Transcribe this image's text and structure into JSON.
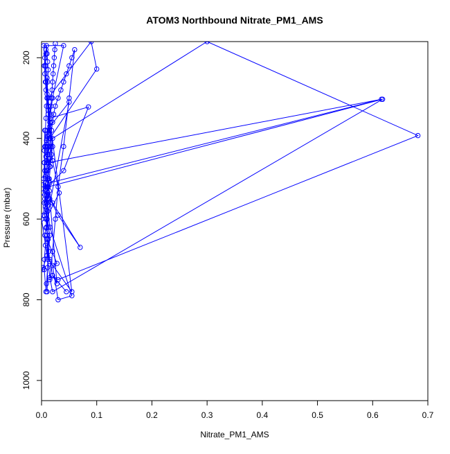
{
  "chart_data": {
    "type": "line",
    "title": "ATOM3 Northbound Nitrate_PM1_AMS",
    "xlabel": "Nitrate_PM1_AMS",
    "ylabel": "Pressure (mbar)",
    "xlim": [
      0,
      0.7
    ],
    "ylim": [
      1050,
      160
    ],
    "y_reversed": true,
    "x_ticks": [
      "0.0",
      "0.1",
      "0.2",
      "0.3",
      "0.4",
      "0.5",
      "0.6",
      "0.7"
    ],
    "y_ticks": [
      "200",
      "400",
      "600",
      "800",
      "1000"
    ],
    "grid": false,
    "legend": "none",
    "marker": "open-circle",
    "color": "#0000ff",
    "series": [
      {
        "x": [
          0.002,
          0.003,
          0.01,
          0.0,
          0.008,
          0.003,
          0.006,
          0.005,
          0.007,
          0.01,
          0.02,
          0.04,
          0.004,
          0.012,
          0.055,
          0.015,
          0.01,
          0.01,
          0.028,
          0.02,
          0.03,
          0.055,
          0.015,
          0.01,
          0.008,
          0.005,
          0.006
        ],
        "y": [
          725,
          720,
          690,
          600,
          560,
          515,
          480,
          460,
          420,
          400,
          300,
          170,
          170,
          320,
          780,
          705,
          690,
          650,
          710,
          715,
          800,
          790,
          620,
          560,
          510,
          430,
          380
        ]
      },
      {
        "x": [
          0.012,
          0.015,
          0.616,
          0.012,
          0.01,
          0.01,
          0.05,
          0.01,
          0.015,
          0.013,
          0.011,
          0.009,
          0.01,
          0.012,
          0.01
        ],
        "y": [
          550,
          510,
          303,
          460,
          420,
          380,
          310,
          600,
          640,
          680,
          720,
          760,
          780,
          650,
          600
        ]
      },
      {
        "x": [
          0.045,
          0.02,
          0.03,
          0.682,
          0.3,
          0.02,
          0.015,
          0.012,
          0.01,
          0.011,
          0.012
        ],
        "y": [
          780,
          740,
          750,
          393,
          160,
          400,
          450,
          500,
          540,
          580,
          620
        ]
      },
      {
        "x": [
          0.015,
          0.1,
          0.09,
          0.012,
          0.015,
          0.085,
          0.04,
          0.01,
          0.02,
          0.07,
          0.03,
          0.015,
          0.028,
          0.02,
          0.015,
          0.01
        ],
        "y": [
          400,
          228,
          160,
          300,
          350,
          322,
          480,
          520,
          560,
          670,
          590,
          550,
          760,
          740,
          700,
          660
        ]
      },
      {
        "x": [
          0.012,
          0.618,
          0.02,
          0.015,
          0.011,
          0.01,
          0.008,
          0.032,
          0.02,
          0.016,
          0.012,
          0.01
        ],
        "y": [
          520,
          303,
          780,
          745,
          700,
          640,
          600,
          535,
          455,
          400,
          330,
          250
        ]
      },
      {
        "x": [
          0.008,
          0.005,
          0.005,
          0.007,
          0.006,
          0.008,
          0.01,
          0.009,
          0.007,
          0.008,
          0.01,
          0.012,
          0.011,
          0.01,
          0.012,
          0.014,
          0.016,
          0.018,
          0.02,
          0.015,
          0.012,
          0.01,
          0.008,
          0.007,
          0.006,
          0.005,
          0.006,
          0.008
        ],
        "y": [
          780,
          725,
          700,
          665,
          640,
          622,
          600,
          590,
          570,
          560,
          550,
          540,
          535,
          530,
          520,
          500,
          470,
          440,
          420,
          370,
          330,
          300,
          280,
          260,
          240,
          220,
          200,
          180
        ]
      },
      {
        "x": [
          0.003,
          0.004,
          0.005,
          0.006,
          0.007,
          0.008,
          0.009,
          0.01,
          0.011,
          0.012,
          0.011,
          0.01,
          0.009,
          0.008,
          0.007,
          0.008,
          0.01,
          0.012,
          0.013,
          0.012,
          0.011,
          0.01,
          0.009
        ],
        "y": [
          535,
          500,
          460,
          420,
          380,
          350,
          320,
          290,
          260,
          230,
          210,
          190,
          170,
          190,
          220,
          260,
          300,
          340,
          390,
          450,
          500,
          560,
          620
        ]
      },
      {
        "x": [
          0.01,
          0.012,
          0.014,
          0.016,
          0.018,
          0.02,
          0.022,
          0.025,
          0.03,
          0.035,
          0.04,
          0.045,
          0.05,
          0.055,
          0.06,
          0.05,
          0.04,
          0.03,
          0.025,
          0.02,
          0.015
        ],
        "y": [
          460,
          440,
          420,
          400,
          380,
          360,
          340,
          320,
          300,
          280,
          260,
          240,
          220,
          200,
          180,
          300,
          420,
          520,
          600,
          680,
          750
        ]
      },
      {
        "x": [
          0.005,
          0.006,
          0.007,
          0.008,
          0.009,
          0.01,
          0.011,
          0.012,
          0.013,
          0.014,
          0.015,
          0.016,
          0.017,
          0.018,
          0.019,
          0.02,
          0.021,
          0.022,
          0.023,
          0.024,
          0.025
        ],
        "y": [
          560,
          540,
          520,
          500,
          480,
          460,
          440,
          420,
          400,
          380,
          360,
          340,
          320,
          300,
          280,
          260,
          240,
          220,
          200,
          180,
          165
        ]
      },
      {
        "x": [
          0.004,
          0.008,
          0.012,
          0.006,
          0.01,
          0.014,
          0.009,
          0.013,
          0.007,
          0.011,
          0.015,
          0.01,
          0.008,
          0.012,
          0.016,
          0.009,
          0.011
        ],
        "y": [
          590,
          575,
          565,
          550,
          540,
          530,
          520,
          505,
          495,
          480,
          470,
          455,
          445,
          430,
          420,
          405,
          395
        ]
      }
    ]
  }
}
